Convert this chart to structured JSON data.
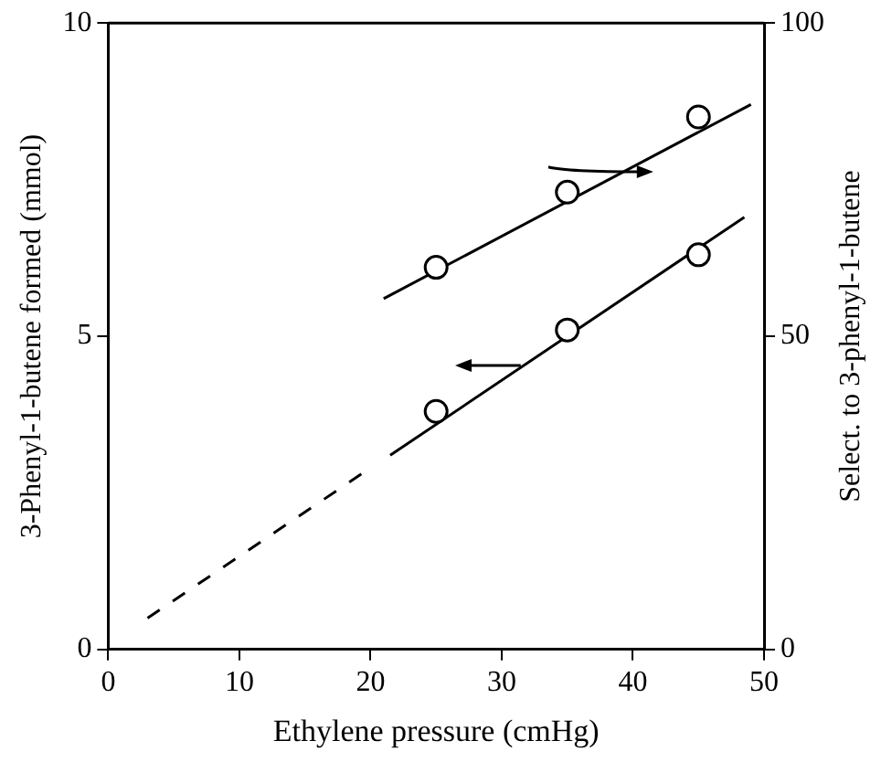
{
  "chart_data": {
    "type": "scatter",
    "xlabel": "Ethylene pressure (cmHg)",
    "ylabel": "3-Phenyl-1-butene formed (mmol)",
    "y2label": "Select. to 3-phenyl-1-butene",
    "xlim": [
      0,
      50
    ],
    "xticks": [
      0,
      10,
      20,
      30,
      40,
      50
    ],
    "ylim": [
      0,
      10
    ],
    "yticks": [
      0,
      5,
      10
    ],
    "y2lim": [
      0,
      100
    ],
    "y2ticks": [
      0,
      50,
      100
    ],
    "grid": false,
    "legend": false,
    "series": [
      {
        "x": [
          25,
          35,
          45
        ],
        "values": [
          3.8,
          5.1,
          6.3
        ],
        "color": "#000000",
        "marker": "circle"
      },
      {
        "axis": "y2",
        "x": [
          25,
          35,
          45
        ],
        "values": [
          61,
          73,
          85
        ],
        "color": "#000000",
        "marker": "circle"
      },
      {
        "type": "line",
        "x": [
          21.5,
          48.5
        ],
        "values": [
          3.1,
          6.9
        ],
        "color": "#000000",
        "marker": "none",
        "line_style": "solid"
      },
      {
        "type": "line",
        "x": [
          3,
          19.3
        ],
        "values": [
          0.5,
          2.8
        ],
        "color": "#000000",
        "marker": "none",
        "line_style": "dashed"
      },
      {
        "type": "line",
        "axis": "y2",
        "x": [
          21,
          49
        ],
        "values": [
          56,
          87
        ],
        "color": "#000000",
        "marker": "none",
        "line_style": "solid"
      }
    ]
  }
}
